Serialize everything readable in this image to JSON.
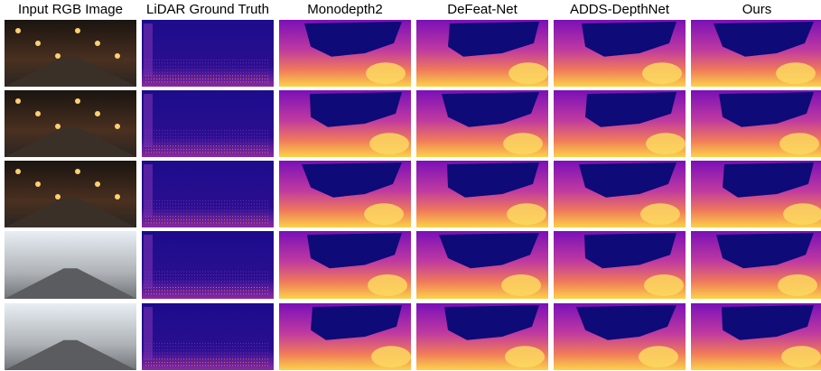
{
  "header": {
    "columns": [
      "Input RGB Image",
      "LiDAR Ground Truth",
      "Monodepth2",
      "DeFeat-Net",
      "ADDS-DepthNet",
      "Ours"
    ]
  }
}
